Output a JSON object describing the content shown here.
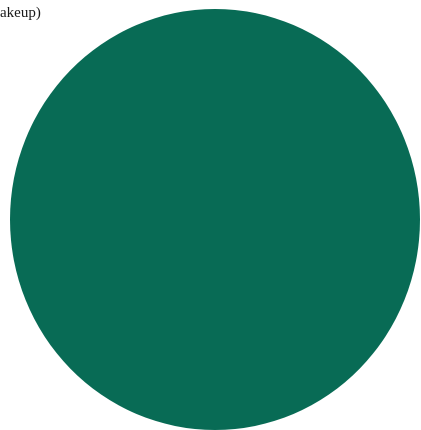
{
  "page": {
    "clipped_text": "akeup)"
  },
  "shape": {
    "type": "circle",
    "color": "#086b55"
  },
  "colors": {
    "background": "#ffffff",
    "text": "#1a1a1a"
  }
}
